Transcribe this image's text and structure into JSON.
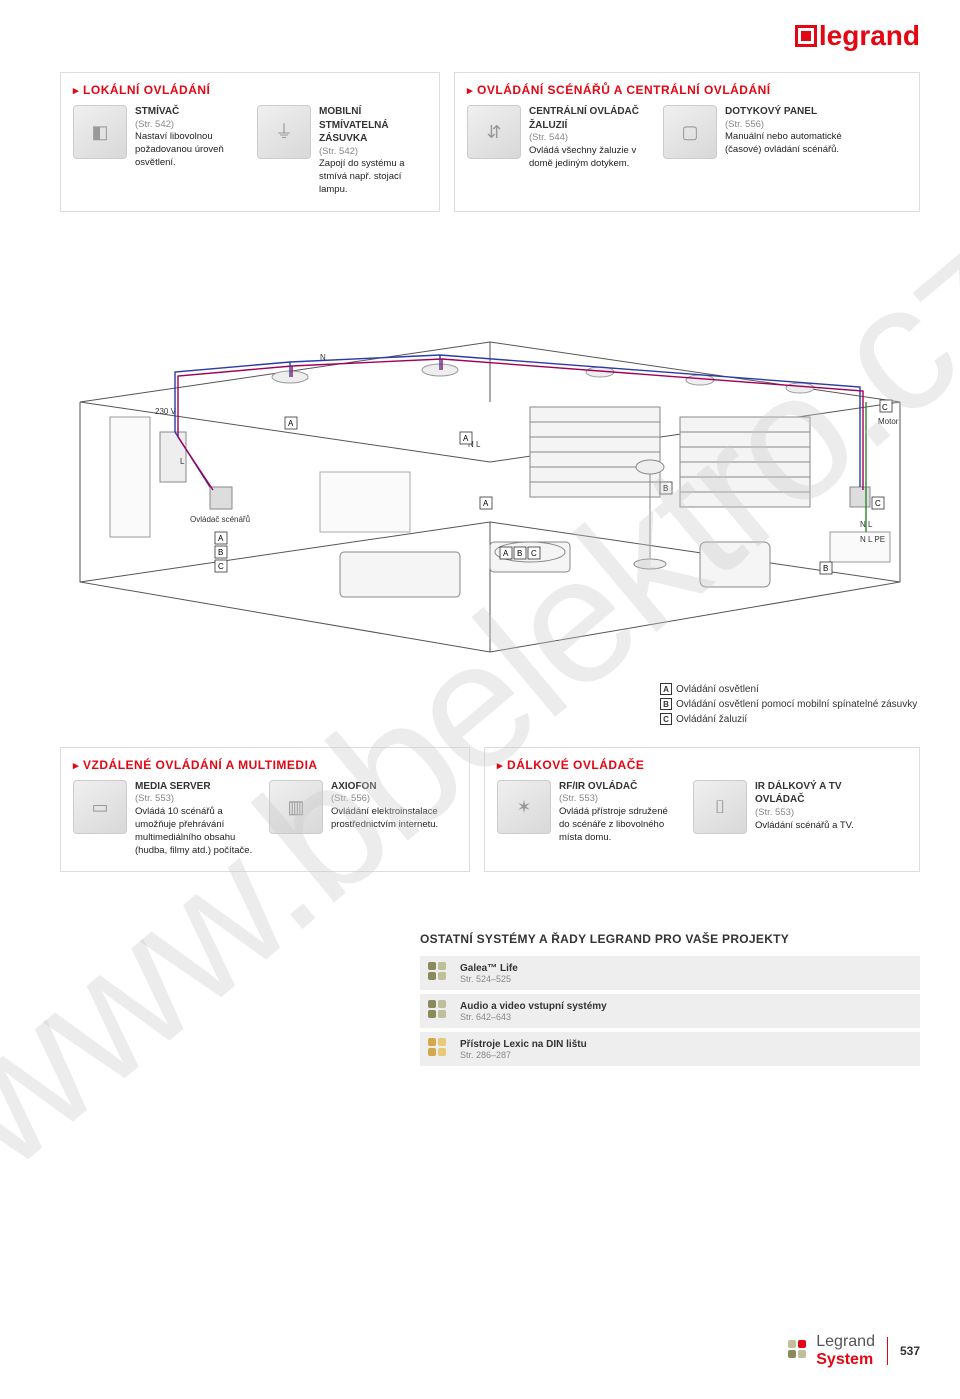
{
  "brand": "legrand",
  "watermark": "www.bbelektro.cz",
  "page_number": "537",
  "footer_brand1": "Legrand",
  "footer_brand2": "System",
  "panels": {
    "local": {
      "title": "LOKÁLNÍ OVLÁDÁNÍ",
      "items": [
        {
          "title": "STMÍVAČ",
          "ref": "(Str. 542)",
          "desc": "Nastaví libovolnou požadovanou úroveň osvětlení."
        },
        {
          "title": "MOBILNÍ STMÍVATELNÁ ZÁSUVKA",
          "ref": "(Str. 542)",
          "desc": "Zapojí do systému a stmívá např. stojací lampu."
        }
      ]
    },
    "central": {
      "title": "OVLÁDÁNÍ SCÉNÁŘŮ A CENTRÁLNÍ OVLÁDÁNÍ",
      "items": [
        {
          "title": "CENTRÁLNÍ OVLÁDAČ ŽALUZIÍ",
          "ref": "(Str. 544)",
          "desc": "Ovládá všechny žaluzie v domě jediným dotykem."
        },
        {
          "title": "DOTYKOVÝ PANEL",
          "ref": "(Str. 556)",
          "desc": "Manuální nebo automatické (časové) ovládání scénářů."
        }
      ]
    },
    "remote": {
      "title": "VZDÁLENÉ OVLÁDÁNÍ A MULTIMEDIA",
      "items": [
        {
          "title": "MEDIA SERVER",
          "ref": "(Str. 553)",
          "desc": "Ovládá 10 scénářů a umožňuje přehrávání multimediálního obsahu (hudba, filmy atd.) počítače."
        },
        {
          "title": "AXIOFON",
          "ref": "(Str. 556)",
          "desc": "Ovládání elektroinstalace prostřednictvím internetu."
        }
      ]
    },
    "dalkove": {
      "title": "DÁLKOVÉ OVLÁDAČE",
      "items": [
        {
          "title": "RF/IR OVLÁDAČ",
          "ref": "(Str. 553)",
          "desc": "Ovládá přístroje sdružené do scénáře z libovolného místa domu."
        },
        {
          "title": "IR DÁLKOVÝ A TV OVLÁDAČ",
          "ref": "(Str. 553)",
          "desc": "Ovládání scénářů a TV."
        }
      ]
    }
  },
  "diagram": {
    "voltage": "230 V",
    "n_label": "N",
    "l_label": "L",
    "nl_label": "N L",
    "nlpe_label": "N L PE",
    "motor_label": "Motor",
    "scenario_label": "Ovládač scénářů",
    "tags": [
      "A",
      "B",
      "C"
    ],
    "wire_colors": {
      "n": "#2b3aa5",
      "l": "#a0005a",
      "pe": "#2a8a2a"
    }
  },
  "legend": {
    "a": "Ovládání osvětlení",
    "b": "Ovládání osvětlení pomocí mobilní spínatelné zásuvky",
    "c": "Ovládání žaluzií"
  },
  "other_systems": {
    "title": "OSTATNÍ SYSTÉMY A ŘADY LEGRAND PRO VAŠE PROJEKTY",
    "rows": [
      {
        "name": "Galea™ Life",
        "ref": "Str. 524–525",
        "colors": [
          "#8a8a5a",
          "#bfbf99",
          "#8a8a5a",
          "#bfbf99"
        ]
      },
      {
        "name": "Audio a video vstupní systémy",
        "ref": "Str. 642–643",
        "colors": [
          "#8a8a5a",
          "#bfbf99",
          "#8a8a5a",
          "#bfbf99"
        ]
      },
      {
        "name": "Přístroje Lexic na DIN lištu",
        "ref": "Str. 286–287",
        "colors": [
          "#d4a84a",
          "#e8c97a",
          "#d4a84a",
          "#e8c97a"
        ]
      }
    ]
  }
}
